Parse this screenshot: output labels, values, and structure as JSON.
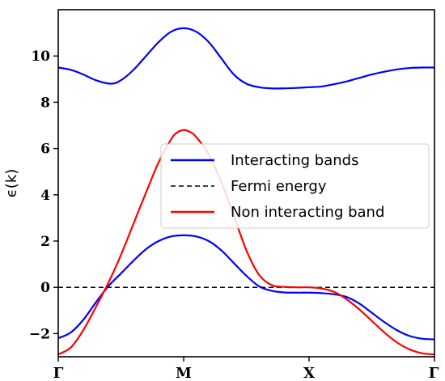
{
  "chart_data": {
    "type": "line",
    "xlabel": "",
    "ylabel": "ϵ(k)",
    "x_range": [
      0,
      3
    ],
    "ylim": [
      -3.0,
      12.0
    ],
    "x_ticks": [
      {
        "value": 0,
        "label": "Γ"
      },
      {
        "value": 1,
        "label": "M"
      },
      {
        "value": 2,
        "label": "X"
      },
      {
        "value": 3,
        "label": "Γ"
      }
    ],
    "y_ticks": [
      {
        "value": -2,
        "label": "−2"
      },
      {
        "value": 0,
        "label": "0"
      },
      {
        "value": 2,
        "label": "2"
      },
      {
        "value": 4,
        "label": "4"
      },
      {
        "value": 6,
        "label": "6"
      },
      {
        "value": 8,
        "label": "8"
      },
      {
        "value": 10,
        "label": "10"
      }
    ],
    "grid": false,
    "legend_position": "center-right",
    "series": [
      {
        "name": "Interacting bands",
        "color": "#0000ff",
        "style": "solid",
        "points": [
          [
            0,
            9.5
          ],
          [
            0.1,
            9.4
          ],
          [
            0.2,
            9.2
          ],
          [
            0.3,
            8.95
          ],
          [
            0.42,
            8.8
          ],
          [
            0.5,
            8.95
          ],
          [
            0.6,
            9.4
          ],
          [
            0.7,
            10.0
          ],
          [
            0.8,
            10.6
          ],
          [
            0.9,
            11.05
          ],
          [
            1.0,
            11.2
          ],
          [
            1.1,
            11.05
          ],
          [
            1.2,
            10.6
          ],
          [
            1.3,
            9.9
          ],
          [
            1.4,
            9.2
          ],
          [
            1.5,
            8.8
          ],
          [
            1.6,
            8.65
          ],
          [
            1.7,
            8.6
          ],
          [
            1.8,
            8.6
          ],
          [
            1.9,
            8.62
          ],
          [
            2.0,
            8.65
          ],
          [
            2.1,
            8.68
          ],
          [
            2.2,
            8.78
          ],
          [
            2.3,
            8.9
          ],
          [
            2.4,
            9.05
          ],
          [
            2.5,
            9.2
          ],
          [
            2.6,
            9.32
          ],
          [
            2.7,
            9.42
          ],
          [
            2.8,
            9.48
          ],
          [
            2.9,
            9.5
          ],
          [
            3.0,
            9.5
          ]
        ]
      },
      {
        "name": "Interacting bands",
        "color": "#0000ff",
        "style": "solid",
        "points": [
          [
            0,
            -2.2
          ],
          [
            0.1,
            -1.95
          ],
          [
            0.2,
            -1.4
          ],
          [
            0.3,
            -0.65
          ],
          [
            0.4,
            0.05
          ],
          [
            0.5,
            0.6
          ],
          [
            0.6,
            1.15
          ],
          [
            0.7,
            1.65
          ],
          [
            0.8,
            2.0
          ],
          [
            0.9,
            2.2
          ],
          [
            1.0,
            2.25
          ],
          [
            1.1,
            2.2
          ],
          [
            1.2,
            2.0
          ],
          [
            1.3,
            1.6
          ],
          [
            1.4,
            1.05
          ],
          [
            1.5,
            0.5
          ],
          [
            1.6,
            0.05
          ],
          [
            1.7,
            -0.15
          ],
          [
            1.8,
            -0.22
          ],
          [
            1.9,
            -0.23
          ],
          [
            2.0,
            -0.23
          ],
          [
            2.1,
            -0.25
          ],
          [
            2.2,
            -0.3
          ],
          [
            2.3,
            -0.42
          ],
          [
            2.4,
            -0.7
          ],
          [
            2.5,
            -1.1
          ],
          [
            2.6,
            -1.5
          ],
          [
            2.7,
            -1.85
          ],
          [
            2.8,
            -2.1
          ],
          [
            2.9,
            -2.22
          ],
          [
            3.0,
            -2.25
          ]
        ]
      },
      {
        "name": "Fermi energy",
        "color": "#000000",
        "style": "dashed",
        "points": [
          [
            0,
            0
          ],
          [
            3,
            0
          ]
        ]
      },
      {
        "name": "Non interacting band",
        "color": "#ff0000",
        "style": "solid",
        "points": [
          [
            0,
            -2.9
          ],
          [
            0.1,
            -2.6
          ],
          [
            0.2,
            -1.85
          ],
          [
            0.3,
            -0.85
          ],
          [
            0.4,
            0.2
          ],
          [
            0.5,
            1.4
          ],
          [
            0.6,
            2.75
          ],
          [
            0.7,
            4.1
          ],
          [
            0.8,
            5.4
          ],
          [
            0.9,
            6.4
          ],
          [
            0.95,
            6.7
          ],
          [
            1.0,
            6.8
          ],
          [
            1.05,
            6.72
          ],
          [
            1.1,
            6.5
          ],
          [
            1.2,
            5.75
          ],
          [
            1.3,
            4.55
          ],
          [
            1.4,
            3.1
          ],
          [
            1.5,
            1.6
          ],
          [
            1.6,
            0.55
          ],
          [
            1.7,
            0.1
          ],
          [
            1.8,
            0.02
          ],
          [
            1.9,
            0.0
          ],
          [
            2.0,
            0.0
          ],
          [
            2.1,
            -0.05
          ],
          [
            2.2,
            -0.2
          ],
          [
            2.3,
            -0.52
          ],
          [
            2.4,
            -0.95
          ],
          [
            2.5,
            -1.45
          ],
          [
            2.6,
            -1.95
          ],
          [
            2.7,
            -2.38
          ],
          [
            2.8,
            -2.68
          ],
          [
            2.9,
            -2.85
          ],
          [
            3.0,
            -2.9
          ]
        ]
      }
    ],
    "legend": [
      {
        "label": "Interacting bands",
        "color": "#0000ff",
        "style": "solid"
      },
      {
        "label": "Fermi energy",
        "color": "#000000",
        "style": "dashed"
      },
      {
        "label": "Non interacting band",
        "color": "#ff0000",
        "style": "solid"
      }
    ]
  }
}
